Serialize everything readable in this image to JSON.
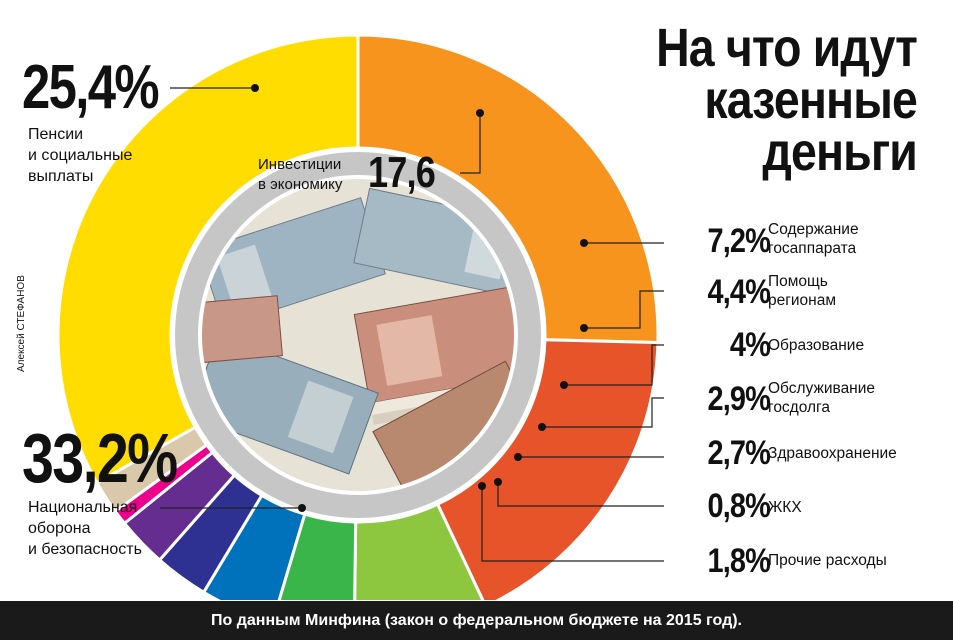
{
  "title_lines": [
    "На что идут",
    "казенные",
    "деньги"
  ],
  "byline": "Алексей СТЕФАНОВ",
  "footer": "По данным Минфина (закон о федеральном бюджете на 2015 год).",
  "chart_data": {
    "type": "pie",
    "title": "На что идут казенные деньги",
    "unit": "%",
    "slices": [
      {
        "value_label": "25,4%",
        "value": 25.4,
        "label_lines": [
          "Пенсии",
          "и социальные",
          "выплаты"
        ],
        "color": "#F7941D"
      },
      {
        "value_label": "17,6",
        "value": 17.6,
        "label_lines": [
          "Инвестиции",
          "в экономику"
        ],
        "color": "#E8542A"
      },
      {
        "value_label": "7,2%",
        "value": 7.2,
        "label_lines": [
          "Содержание",
          "госаппарата"
        ],
        "color": "#8DC63F"
      },
      {
        "value_label": "4,4%",
        "value": 4.4,
        "label_lines": [
          "Помощь",
          "регионам"
        ],
        "color": "#39B54A"
      },
      {
        "value_label": "4%",
        "value": 4.0,
        "label_lines": [
          "Образование"
        ],
        "color": "#0072BC"
      },
      {
        "value_label": "2,9%",
        "value": 2.9,
        "label_lines": [
          "Обслуживание",
          "госдолга"
        ],
        "color": "#2E3192"
      },
      {
        "value_label": "2,7%",
        "value": 2.7,
        "label_lines": [
          "Здравоохранение"
        ],
        "color": "#662D91"
      },
      {
        "value_label": "0,8%",
        "value": 0.8,
        "label_lines": [
          "ЖКХ"
        ],
        "color": "#EC008C"
      },
      {
        "value_label": "1,8%",
        "value": 1.8,
        "label_lines": [
          "Прочие расходы"
        ],
        "color": "#D9C8A9"
      },
      {
        "value_label": "33,2%",
        "value": 33.2,
        "label_lines": [
          "Национальная",
          "оборона",
          "и безопасность"
        ],
        "color": "#FFDD00"
      }
    ]
  }
}
